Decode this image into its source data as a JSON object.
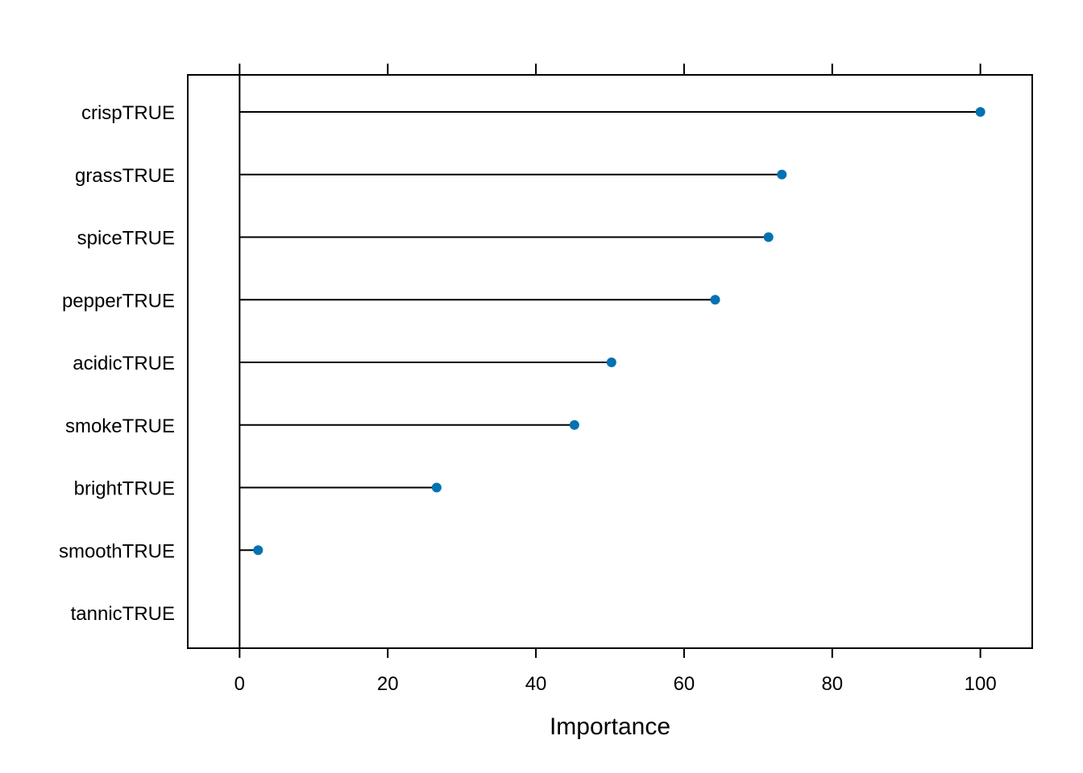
{
  "chart_data": {
    "type": "dotplot",
    "xlabel": "Importance",
    "xlim": [
      -7,
      107
    ],
    "x_ticks": [
      0,
      20,
      40,
      60,
      80,
      100
    ],
    "categories": [
      "crispTRUE",
      "grassTRUE",
      "spiceTRUE",
      "pepperTRUE",
      "acidicTRUE",
      "smokeTRUE",
      "brightTRUE",
      "smoothTRUE",
      "tannicTRUE"
    ],
    "values": [
      100,
      73.2,
      71.4,
      64.2,
      50.2,
      45.2,
      26.6,
      2.5,
      0
    ],
    "baseline": 0,
    "grid": false,
    "point_color": "#0072B2",
    "line_color": "#000000"
  }
}
